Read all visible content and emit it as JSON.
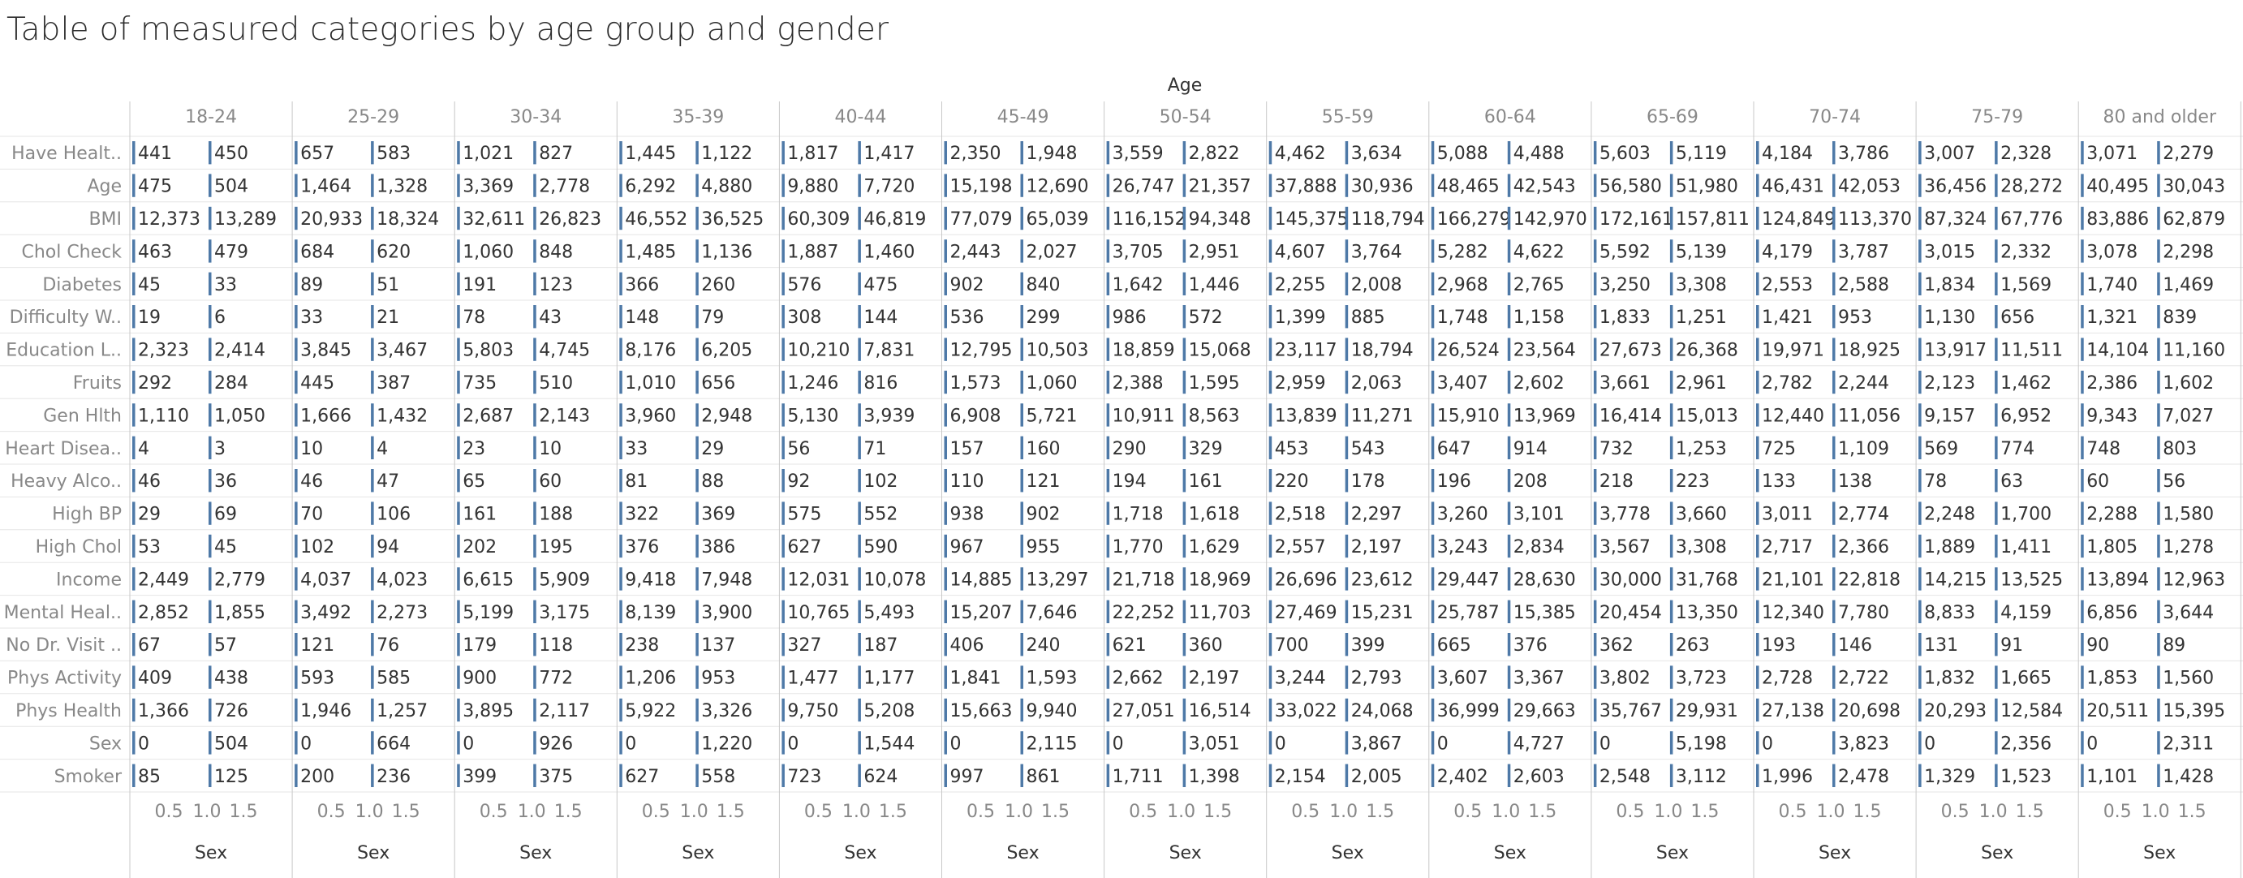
{
  "chart_data": {
    "type": "bar",
    "title": "Table of measured categories by age group and gender",
    "column_header": "Age",
    "xlabel": "Sex",
    "x_ticks": [
      "0.5",
      "1.0",
      "1.5"
    ],
    "age_groups": [
      "18-24",
      "25-29",
      "30-34",
      "35-39",
      "40-44",
      "45-49",
      "50-54",
      "55-59",
      "60-64",
      "65-69",
      "70-74",
      "75-79",
      "80 and older"
    ],
    "rows": [
      {
        "label": "Have Healt..",
        "values": [
          [
            441,
            450
          ],
          [
            657,
            583
          ],
          [
            1021,
            827
          ],
          [
            1445,
            1122
          ],
          [
            1817,
            1417
          ],
          [
            2350,
            1948
          ],
          [
            3559,
            2822
          ],
          [
            4462,
            3634
          ],
          [
            5088,
            4488
          ],
          [
            5603,
            5119
          ],
          [
            4184,
            3786
          ],
          [
            3007,
            2328
          ],
          [
            3071,
            2279
          ]
        ]
      },
      {
        "label": "Age",
        "values": [
          [
            475,
            504
          ],
          [
            1464,
            1328
          ],
          [
            3369,
            2778
          ],
          [
            6292,
            4880
          ],
          [
            9880,
            7720
          ],
          [
            15198,
            12690
          ],
          [
            26747,
            21357
          ],
          [
            37888,
            30936
          ],
          [
            48465,
            42543
          ],
          [
            56580,
            51980
          ],
          [
            46431,
            42053
          ],
          [
            36456,
            28272
          ],
          [
            40495,
            30043
          ]
        ]
      },
      {
        "label": "BMI",
        "values": [
          [
            12373,
            13289
          ],
          [
            20933,
            18324
          ],
          [
            32611,
            26823
          ],
          [
            46552,
            36525
          ],
          [
            60309,
            46819
          ],
          [
            77079,
            65039
          ],
          [
            116152,
            94348
          ],
          [
            145375,
            118794
          ],
          [
            166279,
            142970
          ],
          [
            172161,
            157811
          ],
          [
            124849,
            113370
          ],
          [
            87324,
            67776
          ],
          [
            83886,
            62879
          ]
        ]
      },
      {
        "label": "Chol Check",
        "values": [
          [
            463,
            479
          ],
          [
            684,
            620
          ],
          [
            1060,
            848
          ],
          [
            1485,
            1136
          ],
          [
            1887,
            1460
          ],
          [
            2443,
            2027
          ],
          [
            3705,
            2951
          ],
          [
            4607,
            3764
          ],
          [
            5282,
            4622
          ],
          [
            5592,
            5139
          ],
          [
            4179,
            3787
          ],
          [
            3015,
            2332
          ],
          [
            3078,
            2298
          ]
        ]
      },
      {
        "label": "Diabetes",
        "values": [
          [
            45,
            33
          ],
          [
            89,
            51
          ],
          [
            191,
            123
          ],
          [
            366,
            260
          ],
          [
            576,
            475
          ],
          [
            902,
            840
          ],
          [
            1642,
            1446
          ],
          [
            2255,
            2008
          ],
          [
            2968,
            2765
          ],
          [
            3250,
            3308
          ],
          [
            2553,
            2588
          ],
          [
            1834,
            1569
          ],
          [
            1740,
            1469
          ]
        ]
      },
      {
        "label": "Difficulty W..",
        "values": [
          [
            19,
            6
          ],
          [
            33,
            21
          ],
          [
            78,
            43
          ],
          [
            148,
            79
          ],
          [
            308,
            144
          ],
          [
            536,
            299
          ],
          [
            986,
            572
          ],
          [
            1399,
            885
          ],
          [
            1748,
            1158
          ],
          [
            1833,
            1251
          ],
          [
            1421,
            953
          ],
          [
            1130,
            656
          ],
          [
            1321,
            839
          ]
        ]
      },
      {
        "label": "Education L..",
        "values": [
          [
            2323,
            2414
          ],
          [
            3845,
            3467
          ],
          [
            5803,
            4745
          ],
          [
            8176,
            6205
          ],
          [
            10210,
            7831
          ],
          [
            12795,
            10503
          ],
          [
            18859,
            15068
          ],
          [
            23117,
            18794
          ],
          [
            26524,
            23564
          ],
          [
            27673,
            26368
          ],
          [
            19971,
            18925
          ],
          [
            13917,
            11511
          ],
          [
            14104,
            11160
          ]
        ]
      },
      {
        "label": "Fruits",
        "values": [
          [
            292,
            284
          ],
          [
            445,
            387
          ],
          [
            735,
            510
          ],
          [
            1010,
            656
          ],
          [
            1246,
            816
          ],
          [
            1573,
            1060
          ],
          [
            2388,
            1595
          ],
          [
            2959,
            2063
          ],
          [
            3407,
            2602
          ],
          [
            3661,
            2961
          ],
          [
            2782,
            2244
          ],
          [
            2123,
            1462
          ],
          [
            2386,
            1602
          ]
        ]
      },
      {
        "label": "Gen Hlth",
        "values": [
          [
            1110,
            1050
          ],
          [
            1666,
            1432
          ],
          [
            2687,
            2143
          ],
          [
            3960,
            2948
          ],
          [
            5130,
            3939
          ],
          [
            6908,
            5721
          ],
          [
            10911,
            8563
          ],
          [
            13839,
            11271
          ],
          [
            15910,
            13969
          ],
          [
            16414,
            15013
          ],
          [
            12440,
            11056
          ],
          [
            9157,
            6952
          ],
          [
            9343,
            7027
          ]
        ]
      },
      {
        "label": "Heart Disea..",
        "values": [
          [
            4,
            3
          ],
          [
            10,
            4
          ],
          [
            23,
            10
          ],
          [
            33,
            29
          ],
          [
            56,
            71
          ],
          [
            157,
            160
          ],
          [
            290,
            329
          ],
          [
            453,
            543
          ],
          [
            647,
            914
          ],
          [
            732,
            1253
          ],
          [
            725,
            1109
          ],
          [
            569,
            774
          ],
          [
            748,
            803
          ]
        ]
      },
      {
        "label": "Heavy Alco..",
        "values": [
          [
            46,
            36
          ],
          [
            46,
            47
          ],
          [
            65,
            60
          ],
          [
            81,
            88
          ],
          [
            92,
            102
          ],
          [
            110,
            121
          ],
          [
            194,
            161
          ],
          [
            220,
            178
          ],
          [
            196,
            208
          ],
          [
            218,
            223
          ],
          [
            133,
            138
          ],
          [
            78,
            63
          ],
          [
            60,
            56
          ]
        ]
      },
      {
        "label": "High BP",
        "values": [
          [
            29,
            69
          ],
          [
            70,
            106
          ],
          [
            161,
            188
          ],
          [
            322,
            369
          ],
          [
            575,
            552
          ],
          [
            938,
            902
          ],
          [
            1718,
            1618
          ],
          [
            2518,
            2297
          ],
          [
            3260,
            3101
          ],
          [
            3778,
            3660
          ],
          [
            3011,
            2774
          ],
          [
            2248,
            1700
          ],
          [
            2288,
            1580
          ]
        ]
      },
      {
        "label": "High Chol",
        "values": [
          [
            53,
            45
          ],
          [
            102,
            94
          ],
          [
            202,
            195
          ],
          [
            376,
            386
          ],
          [
            627,
            590
          ],
          [
            967,
            955
          ],
          [
            1770,
            1629
          ],
          [
            2557,
            2197
          ],
          [
            3243,
            2834
          ],
          [
            3567,
            3308
          ],
          [
            2717,
            2366
          ],
          [
            1889,
            1411
          ],
          [
            1805,
            1278
          ]
        ]
      },
      {
        "label": "Income",
        "values": [
          [
            2449,
            2779
          ],
          [
            4037,
            4023
          ],
          [
            6615,
            5909
          ],
          [
            9418,
            7948
          ],
          [
            12031,
            10078
          ],
          [
            14885,
            13297
          ],
          [
            21718,
            18969
          ],
          [
            26696,
            23612
          ],
          [
            29447,
            28630
          ],
          [
            30000,
            31768
          ],
          [
            21101,
            22818
          ],
          [
            14215,
            13525
          ],
          [
            13894,
            12963
          ]
        ]
      },
      {
        "label": "Mental Heal..",
        "values": [
          [
            2852,
            1855
          ],
          [
            3492,
            2273
          ],
          [
            5199,
            3175
          ],
          [
            8139,
            3900
          ],
          [
            10765,
            5493
          ],
          [
            15207,
            7646
          ],
          [
            22252,
            11703
          ],
          [
            27469,
            15231
          ],
          [
            25787,
            15385
          ],
          [
            20454,
            13350
          ],
          [
            12340,
            7780
          ],
          [
            8833,
            4159
          ],
          [
            6856,
            3644
          ]
        ]
      },
      {
        "label": "No Dr. Visit ..",
        "values": [
          [
            67,
            57
          ],
          [
            121,
            76
          ],
          [
            179,
            118
          ],
          [
            238,
            137
          ],
          [
            327,
            187
          ],
          [
            406,
            240
          ],
          [
            621,
            360
          ],
          [
            700,
            399
          ],
          [
            665,
            376
          ],
          [
            362,
            263
          ],
          [
            193,
            146
          ],
          [
            131,
            91
          ],
          [
            90,
            89
          ]
        ]
      },
      {
        "label": "Phys Activity",
        "values": [
          [
            409,
            438
          ],
          [
            593,
            585
          ],
          [
            900,
            772
          ],
          [
            1206,
            953
          ],
          [
            1477,
            1177
          ],
          [
            1841,
            1593
          ],
          [
            2662,
            2197
          ],
          [
            3244,
            2793
          ],
          [
            3607,
            3367
          ],
          [
            3802,
            3723
          ],
          [
            2728,
            2722
          ],
          [
            1832,
            1665
          ],
          [
            1853,
            1560
          ]
        ]
      },
      {
        "label": "Phys Health",
        "values": [
          [
            1366,
            726
          ],
          [
            1946,
            1257
          ],
          [
            3895,
            2117
          ],
          [
            5922,
            3326
          ],
          [
            9750,
            5208
          ],
          [
            15663,
            9940
          ],
          [
            27051,
            16514
          ],
          [
            33022,
            24068
          ],
          [
            36999,
            29663
          ],
          [
            35767,
            29931
          ],
          [
            27138,
            20698
          ],
          [
            20293,
            12584
          ],
          [
            20511,
            15395
          ]
        ]
      },
      {
        "label": "Sex",
        "values": [
          [
            0,
            504
          ],
          [
            0,
            664
          ],
          [
            0,
            926
          ],
          [
            0,
            1220
          ],
          [
            0,
            1544
          ],
          [
            0,
            2115
          ],
          [
            0,
            3051
          ],
          [
            0,
            3867
          ],
          [
            0,
            4727
          ],
          [
            0,
            5198
          ],
          [
            0,
            3823
          ],
          [
            0,
            2356
          ],
          [
            0,
            2311
          ]
        ]
      },
      {
        "label": "Smoker",
        "values": [
          [
            85,
            125
          ],
          [
            200,
            236
          ],
          [
            399,
            375
          ],
          [
            627,
            558
          ],
          [
            723,
            624
          ],
          [
            997,
            861
          ],
          [
            1711,
            1398
          ],
          [
            2154,
            2005
          ],
          [
            2402,
            2603
          ],
          [
            2548,
            3112
          ],
          [
            1996,
            2478
          ],
          [
            1329,
            1523
          ],
          [
            1101,
            1428
          ]
        ]
      }
    ],
    "colors": {
      "bar": "#4e79a7",
      "grid": "#e6e6e6",
      "divider": "#c8c8c8",
      "text": "#333333",
      "muted": "#888888"
    },
    "grid": true,
    "legend": "none"
  }
}
